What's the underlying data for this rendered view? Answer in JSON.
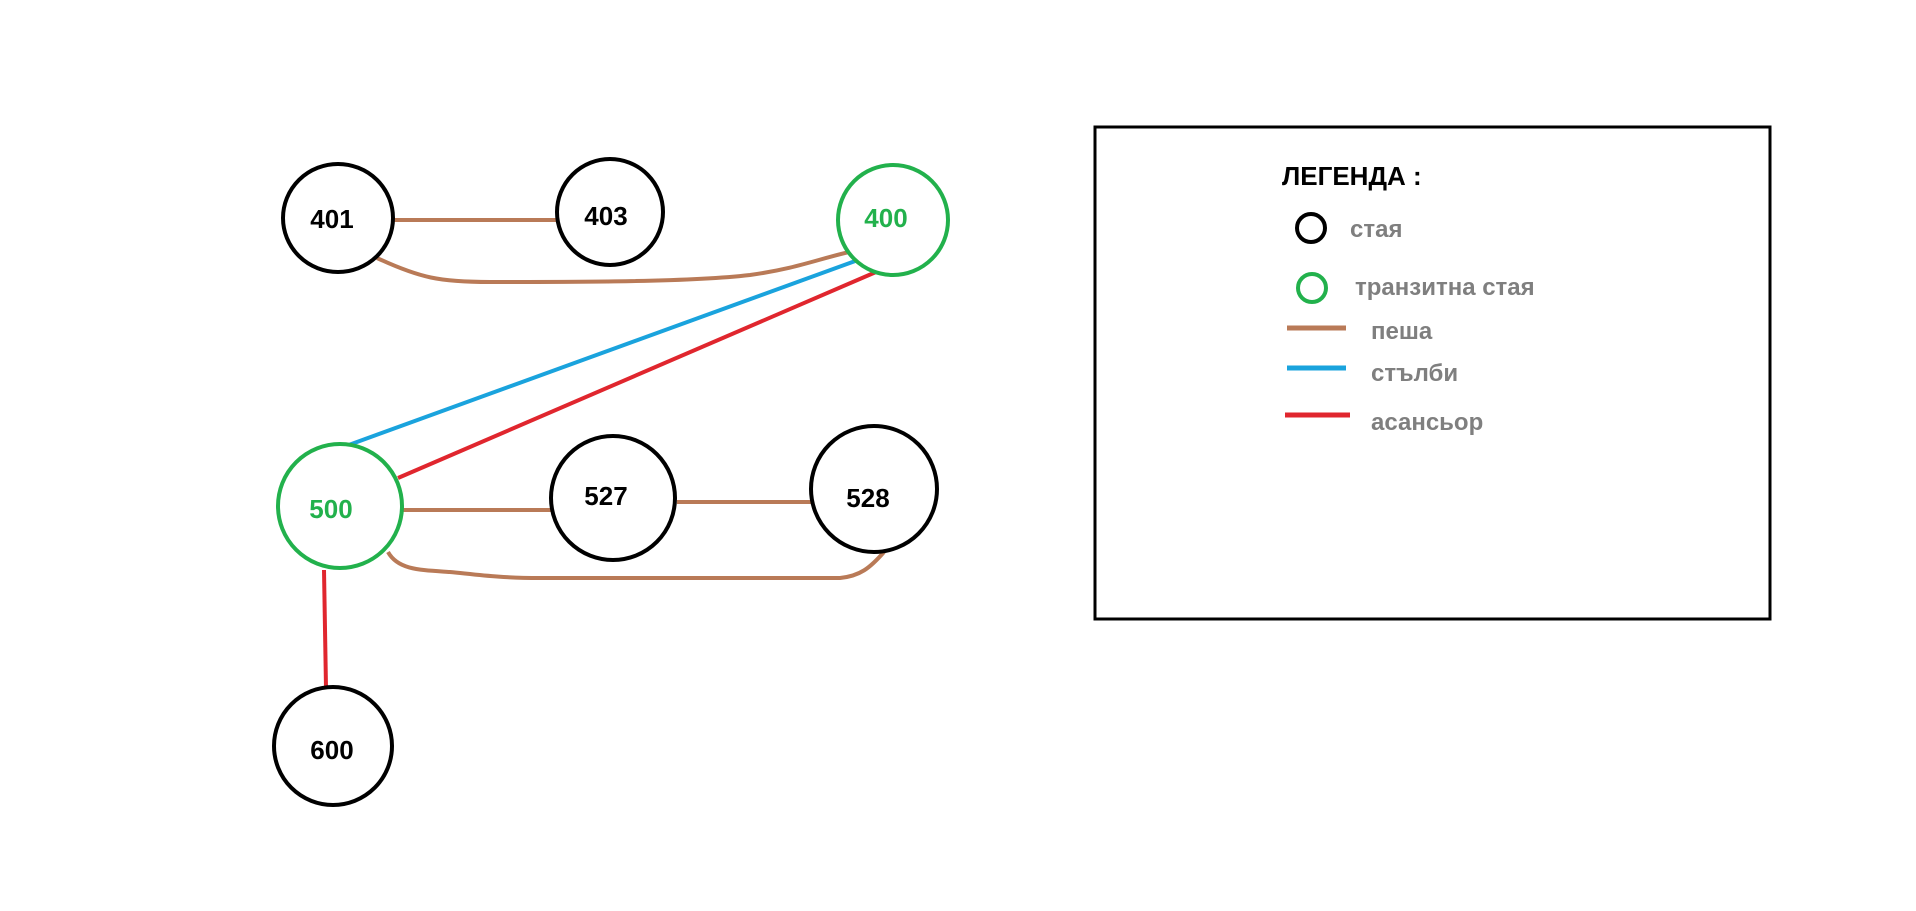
{
  "colors": {
    "room": "#000000",
    "transit_room": "#22b14c",
    "walk": "#b97a57",
    "stairs": "#1aa3dd",
    "elevator": "#e0262e",
    "legend_text": "#7f7f7f",
    "legend_title": "#000000"
  },
  "nodes": [
    {
      "id": "401",
      "label": "401",
      "type": "room"
    },
    {
      "id": "403",
      "label": "403",
      "type": "room"
    },
    {
      "id": "400",
      "label": "400",
      "type": "transit"
    },
    {
      "id": "500",
      "label": "500",
      "type": "transit"
    },
    {
      "id": "527",
      "label": "527",
      "type": "room"
    },
    {
      "id": "528",
      "label": "528",
      "type": "room"
    },
    {
      "id": "600",
      "label": "600",
      "type": "room"
    }
  ],
  "edges": [
    {
      "from": "401",
      "to": "403",
      "kind": "walk"
    },
    {
      "from": "401",
      "to": "400",
      "kind": "walk"
    },
    {
      "from": "400",
      "to": "500",
      "kind": "stairs"
    },
    {
      "from": "400",
      "to": "500",
      "kind": "elevator"
    },
    {
      "from": "500",
      "to": "527",
      "kind": "walk"
    },
    {
      "from": "527",
      "to": "528",
      "kind": "walk"
    },
    {
      "from": "500",
      "to": "528",
      "kind": "walk"
    },
    {
      "from": "500",
      "to": "600",
      "kind": "elevator"
    }
  ],
  "legend": {
    "title": "ЛЕГЕНДА :",
    "room": "стая",
    "transit_room": "транзитна стая",
    "walk": "пеша",
    "stairs": "стълби",
    "elevator": "асансьор"
  }
}
